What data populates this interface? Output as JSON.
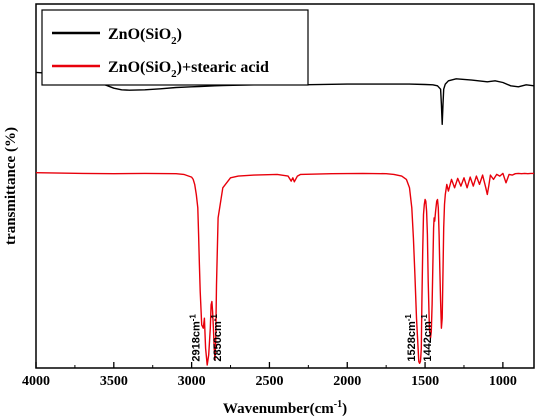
{
  "chart_data": {
    "type": "line",
    "xlabel": "Wavenumber(cm",
    "xlabel_sup": "-1",
    "xlabel_suffix": ")",
    "ylabel": "transmittance (%)",
    "xlim": [
      4000,
      800
    ],
    "x_reversed": true,
    "x_ticks": [
      4000,
      3500,
      3000,
      2500,
      2000,
      1500,
      1000
    ],
    "y_tick_labels_shown": false,
    "grid": false,
    "legend_position": "top-left",
    "series": [
      {
        "name": "ZnO(SiO2)",
        "legend_main": "ZnO(SiO",
        "legend_sub": "2",
        "legend_tail": ")",
        "color": "#000000",
        "x": [
          4000,
          3900,
          3800,
          3700,
          3600,
          3550,
          3500,
          3450,
          3400,
          3300,
          3200,
          3100,
          3000,
          2950,
          2900,
          2850,
          2800,
          2600,
          2400,
          2370,
          2350,
          2330,
          2300,
          2000,
          1800,
          1600,
          1500,
          1450,
          1420,
          1400,
          1395,
          1390,
          1385,
          1380,
          1370,
          1350,
          1300,
          1200,
          1100,
          1050,
          1000,
          950,
          900,
          850,
          800
        ],
        "y": [
          0.885,
          0.882,
          0.876,
          0.866,
          0.855,
          0.847,
          0.838,
          0.833,
          0.832,
          0.833,
          0.836,
          0.84,
          0.842,
          0.843,
          0.844,
          0.845,
          0.846,
          0.848,
          0.848,
          0.855,
          0.848,
          0.852,
          0.848,
          0.85,
          0.85,
          0.85,
          0.849,
          0.848,
          0.845,
          0.835,
          0.79,
          0.73,
          0.79,
          0.835,
          0.85,
          0.86,
          0.866,
          0.862,
          0.857,
          0.86,
          0.855,
          0.845,
          0.842,
          0.848,
          0.845
        ]
      },
      {
        "name": "ZnO(SiO2)+stearic acid",
        "legend_main": "ZnO(SiO",
        "legend_sub": "2",
        "legend_tail": ")+stearic acid",
        "color": "#e8000b",
        "x": [
          4000,
          3700,
          3500,
          3300,
          3100,
          3050,
          3000,
          2990,
          2980,
          2970,
          2960,
          2955,
          2950,
          2945,
          2935,
          2925,
          2918,
          2910,
          2900,
          2890,
          2880,
          2875,
          2870,
          2865,
          2860,
          2855,
          2850,
          2845,
          2840,
          2830,
          2800,
          2750,
          2700,
          2600,
          2450,
          2380,
          2360,
          2350,
          2340,
          2320,
          2300,
          2100,
          1900,
          1750,
          1700,
          1650,
          1620,
          1600,
          1585,
          1575,
          1565,
          1555,
          1545,
          1540,
          1535,
          1530,
          1528,
          1524,
          1520,
          1515,
          1510,
          1505,
          1500,
          1495,
          1490,
          1485,
          1480,
          1472,
          1465,
          1460,
          1455,
          1450,
          1445,
          1442,
          1438,
          1432,
          1425,
          1420,
          1415,
          1410,
          1405,
          1400,
          1395,
          1390,
          1385,
          1380,
          1375,
          1370,
          1360,
          1350,
          1330,
          1310,
          1290,
          1270,
          1250,
          1230,
          1210,
          1190,
          1170,
          1150,
          1130,
          1110,
          1100,
          1090,
          1080,
          1060,
          1040,
          1020,
          1000,
          980,
          960,
          940,
          920,
          900,
          880,
          860,
          840,
          820,
          800
        ],
        "y": [
          0.585,
          0.583,
          0.582,
          0.583,
          0.582,
          0.58,
          0.572,
          0.565,
          0.55,
          0.52,
          0.48,
          0.4,
          0.31,
          0.23,
          0.13,
          0.12,
          0.15,
          0.06,
          0.01,
          0.04,
          0.12,
          0.19,
          0.2,
          0.17,
          0.12,
          0.06,
          0.025,
          0.08,
          0.25,
          0.45,
          0.54,
          0.57,
          0.575,
          0.578,
          0.58,
          0.575,
          0.56,
          0.57,
          0.558,
          0.575,
          0.58,
          0.582,
          0.583,
          0.582,
          0.58,
          0.575,
          0.565,
          0.54,
          0.48,
          0.39,
          0.28,
          0.15,
          0.06,
          0.02,
          0.015,
          0.02,
          0.03,
          0.06,
          0.2,
          0.35,
          0.46,
          0.49,
          0.505,
          0.5,
          0.47,
          0.4,
          0.26,
          0.12,
          0.09,
          0.11,
          0.19,
          0.3,
          0.42,
          0.45,
          0.44,
          0.47,
          0.5,
          0.505,
          0.48,
          0.4,
          0.3,
          0.2,
          0.12,
          0.15,
          0.29,
          0.42,
          0.49,
          0.52,
          0.55,
          0.53,
          0.565,
          0.54,
          0.568,
          0.545,
          0.57,
          0.54,
          0.572,
          0.545,
          0.575,
          0.55,
          0.578,
          0.54,
          0.52,
          0.548,
          0.578,
          0.565,
          0.58,
          0.575,
          0.583,
          0.555,
          0.58,
          0.578,
          0.582,
          0.583,
          0.582,
          0.583,
          0.582,
          0.583,
          0.583
        ]
      }
    ],
    "annotations": [
      {
        "label": "2918cm",
        "sup": "-1",
        "x": 2950,
        "y_bottom": 0.02
      },
      {
        "label": "2850cm",
        "sup": "-1",
        "x": 2810,
        "y_bottom": 0.02
      },
      {
        "label": "1528cm",
        "sup": "-1",
        "x": 1565,
        "y_bottom": 0.02
      },
      {
        "label": "1442cm",
        "sup": "-1",
        "x": 1462,
        "y_bottom": 0.02
      }
    ]
  }
}
